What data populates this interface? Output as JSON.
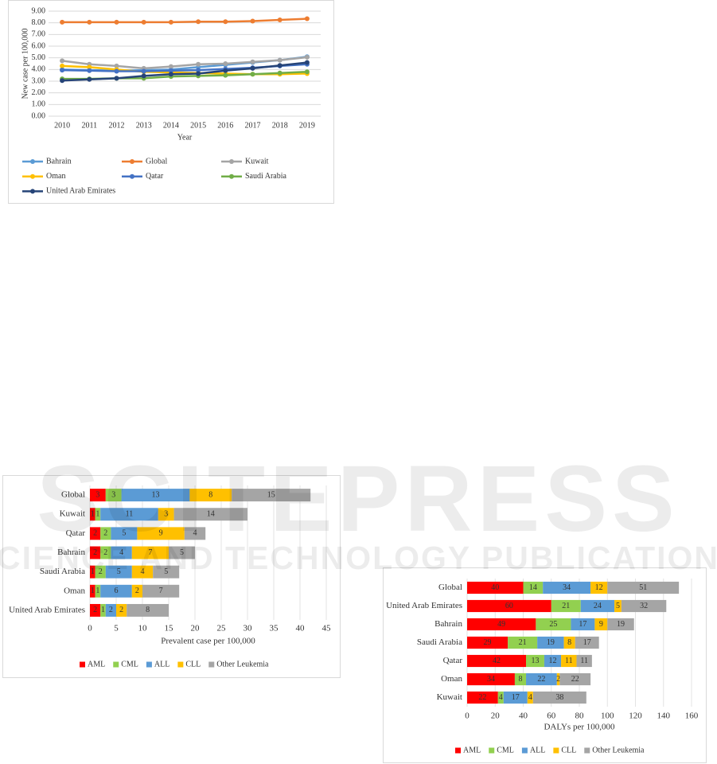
{
  "chart_data": [
    {
      "type": "line",
      "y_label": "New case per 100,000",
      "x_label": "Year",
      "categories": [
        "2010",
        "2011",
        "2012",
        "2013",
        "2014",
        "2015",
        "2016",
        "2017",
        "2018",
        "2019"
      ],
      "ylim": [
        0,
        9
      ],
      "yticks": [
        {
          "value": 0,
          "label": "0.00"
        },
        {
          "value": 1,
          "label": "1.00"
        },
        {
          "value": 2,
          "label": "2.00"
        },
        {
          "value": 3,
          "label": "3.00"
        },
        {
          "value": 4,
          "label": "4.00"
        },
        {
          "value": 5,
          "label": "5.00"
        },
        {
          "value": 6,
          "label": "6.00"
        },
        {
          "value": 7,
          "label": "7.00"
        },
        {
          "value": 8,
          "label": "8.00"
        },
        {
          "value": 9,
          "label": "9.00"
        }
      ],
      "grid": true,
      "legend": "bottom",
      "series": [
        {
          "name": "Bahrain",
          "color": "#5b9bd5",
          "values": [
            4.0,
            3.95,
            3.9,
            3.95,
            4.0,
            4.2,
            4.4,
            4.6,
            4.8,
            5.1
          ]
        },
        {
          "name": "Global",
          "color": "#ed7d31",
          "values": [
            8.05,
            8.05,
            8.05,
            8.05,
            8.05,
            8.1,
            8.1,
            8.15,
            8.25,
            8.35
          ]
        },
        {
          "name": "Kuwait",
          "color": "#a5a5a5",
          "values": [
            4.75,
            4.45,
            4.3,
            4.1,
            4.25,
            4.45,
            4.5,
            4.65,
            4.8,
            5.05
          ]
        },
        {
          "name": "Oman",
          "color": "#ffc000",
          "values": [
            4.3,
            4.2,
            4.0,
            3.8,
            3.75,
            3.7,
            3.65,
            3.6,
            3.6,
            3.65
          ]
        },
        {
          "name": "Qatar",
          "color": "#4472c4",
          "values": [
            3.95,
            3.9,
            3.85,
            3.85,
            3.9,
            3.95,
            4.05,
            4.15,
            4.3,
            4.45
          ]
        },
        {
          "name": "Saudi Arabia",
          "color": "#70ad47",
          "values": [
            3.2,
            3.2,
            3.25,
            3.25,
            3.4,
            3.45,
            3.5,
            3.6,
            3.7,
            3.8
          ]
        },
        {
          "name": "United Arab Emirates",
          "color": "#264478",
          "values": [
            3.05,
            3.15,
            3.25,
            3.45,
            3.6,
            3.65,
            3.9,
            4.1,
            4.35,
            4.6
          ]
        }
      ]
    },
    {
      "type": "bar",
      "orientation": "horizontal",
      "stacked": true,
      "x_label": "Prevalent case per 100,000",
      "categories": [
        "Global",
        "Kuwait",
        "Qatar",
        "Bahrain",
        "Saudi Arabia",
        "Oman",
        "United Arab Emirates"
      ],
      "xlim": [
        0,
        45
      ],
      "xticks": [
        0,
        5,
        10,
        15,
        20,
        25,
        30,
        35,
        40,
        45
      ],
      "grid": true,
      "legend": "bottom",
      "series": [
        {
          "name": "AML",
          "color": "#ff0000",
          "values": [
            3,
            1,
            2,
            2,
            1,
            1,
            2
          ]
        },
        {
          "name": "CML",
          "color": "#92d050",
          "values": [
            3,
            1,
            2,
            2,
            2,
            1,
            1
          ]
        },
        {
          "name": "ALL",
          "color": "#5b9bd5",
          "values": [
            13,
            11,
            5,
            4,
            5,
            6,
            2
          ]
        },
        {
          "name": "CLL",
          "color": "#ffc000",
          "values": [
            8,
            3,
            9,
            7,
            4,
            2,
            2
          ]
        },
        {
          "name": "Other Leukemia",
          "color": "#a5a5a5",
          "values": [
            15,
            14,
            4,
            5,
            5,
            7,
            8
          ]
        }
      ]
    },
    {
      "type": "bar",
      "orientation": "horizontal",
      "stacked": true,
      "x_label": "DALYs per 100,000",
      "categories": [
        "Global",
        "United Arab Emirates",
        "Bahrain",
        "Saudi Arabia",
        "Qatar",
        "Oman",
        "Kuwait"
      ],
      "xlim": [
        0,
        160
      ],
      "xticks": [
        0,
        20,
        40,
        60,
        80,
        100,
        120,
        140,
        160
      ],
      "grid": true,
      "legend": "bottom",
      "series": [
        {
          "name": "AML",
          "color": "#ff0000",
          "values": [
            40,
            60,
            49,
            29,
            42,
            34,
            22
          ]
        },
        {
          "name": "CML",
          "color": "#92d050",
          "values": [
            14,
            21,
            25,
            21,
            13,
            8,
            4
          ]
        },
        {
          "name": "ALL",
          "color": "#5b9bd5",
          "values": [
            34,
            24,
            17,
            19,
            12,
            22,
            17
          ]
        },
        {
          "name": "CLL",
          "color": "#ffc000",
          "values": [
            12,
            5,
            9,
            8,
            11,
            2,
            4
          ]
        },
        {
          "name": "Other Leukemia",
          "color": "#a5a5a5",
          "values": [
            51,
            32,
            19,
            17,
            11,
            22,
            38
          ]
        }
      ]
    }
  ],
  "watermark": {
    "title": "SCITEPRESS",
    "subtitle": "SCIENCE AND TECHNOLOGY PUBLICATIONS"
  }
}
